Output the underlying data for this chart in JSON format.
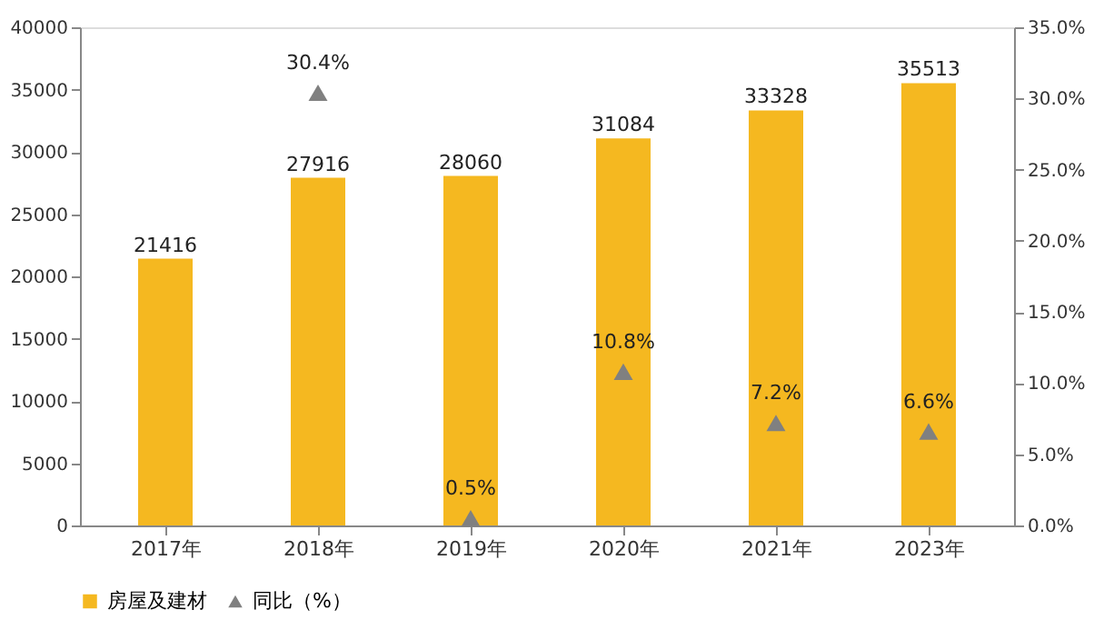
{
  "chart_data": {
    "type": "bar",
    "categories": [
      "2017年",
      "2018年",
      "2019年",
      "2020年",
      "2021年",
      "2023年"
    ],
    "series": [
      {
        "name": "房屋及建材",
        "color": "#f5b820",
        "values": [
          21416,
          27916,
          28060,
          31084,
          33328,
          35513
        ]
      },
      {
        "name": "同比（%）",
        "type": "scatter",
        "axis": "y2",
        "marker": "triangle",
        "color": "#808080",
        "values": [
          null,
          30.4,
          0.5,
          10.8,
          7.2,
          6.6
        ],
        "value_labels": [
          null,
          "30.4%",
          "0.5%",
          "10.8%",
          "7.2%",
          "6.6%"
        ]
      }
    ],
    "ylim": [
      0,
      40000
    ],
    "yticks": [
      0,
      5000,
      10000,
      15000,
      20000,
      25000,
      30000,
      35000,
      40000
    ],
    "y2lim": [
      0,
      35
    ],
    "y2ticks": [
      {
        "value": 0,
        "label": "0.0%"
      },
      {
        "value": 5,
        "label": "5.0%"
      },
      {
        "value": 10,
        "label": "10.0%"
      },
      {
        "value": 15,
        "label": "15.0%"
      },
      {
        "value": 20,
        "label": "20.0%"
      },
      {
        "value": 25,
        "label": "25.0%"
      },
      {
        "value": 30,
        "label": "30.0%"
      },
      {
        "value": 35,
        "label": "35.0%"
      }
    ],
    "data_labels": true,
    "grid": false,
    "legend": "bottom"
  }
}
